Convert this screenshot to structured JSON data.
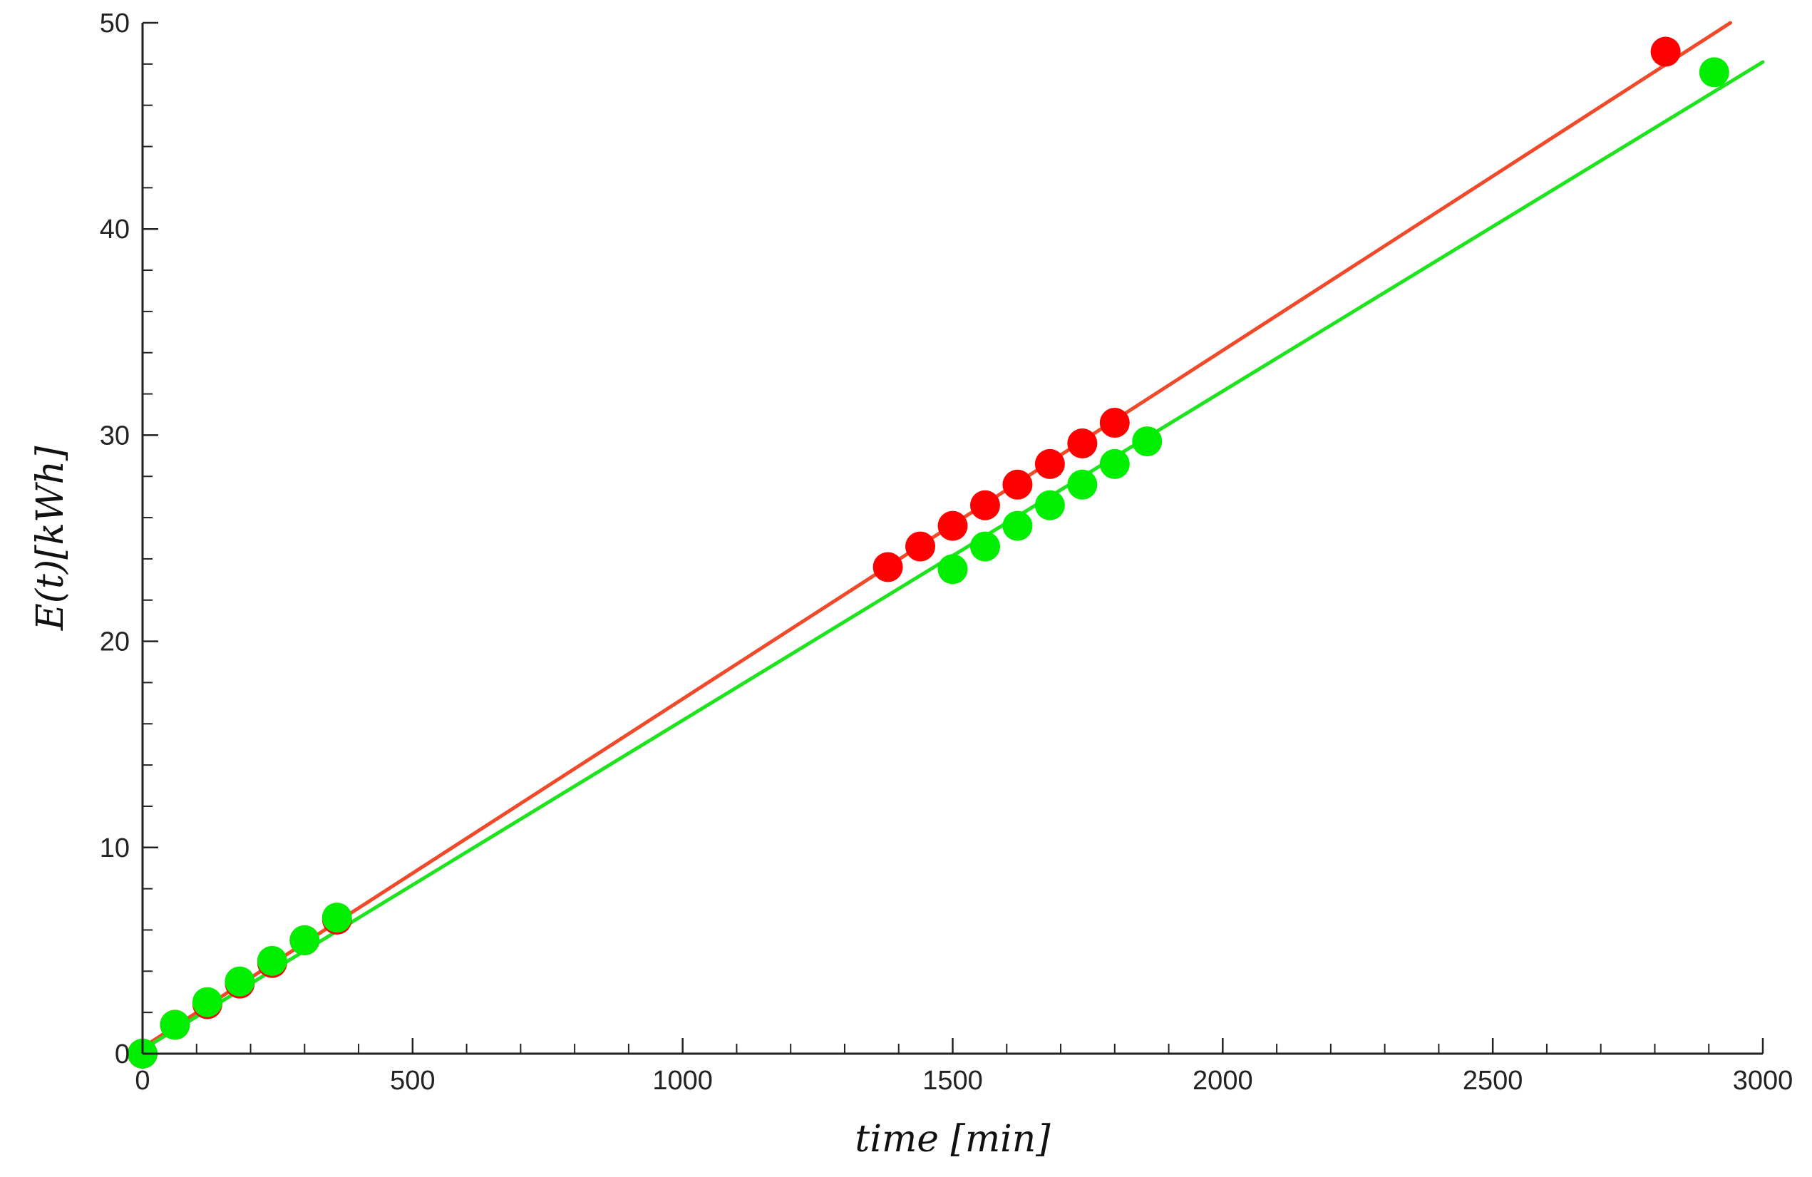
{
  "chart_data": {
    "type": "scatter",
    "title": "",
    "xlabel": "time [min]",
    "ylabel": "E(t)[kWh]",
    "xlim": [
      0,
      3000
    ],
    "ylim": [
      0,
      50
    ],
    "xticks": [
      0,
      500,
      1000,
      1500,
      2000,
      2500,
      3000
    ],
    "yticks": [
      0,
      10,
      20,
      30,
      40,
      50
    ],
    "grid": false,
    "legend": "none",
    "series": [
      {
        "color": "#ff0000",
        "line_color": "#f04a2a",
        "points": [
          {
            "x": 0,
            "y": 0.0
          },
          {
            "x": 60,
            "y": 1.4
          },
          {
            "x": 120,
            "y": 2.4
          },
          {
            "x": 180,
            "y": 3.4
          },
          {
            "x": 240,
            "y": 4.4
          },
          {
            "x": 300,
            "y": 5.5
          },
          {
            "x": 360,
            "y": 6.5
          },
          {
            "x": 1380,
            "y": 23.6
          },
          {
            "x": 1440,
            "y": 24.6
          },
          {
            "x": 1500,
            "y": 25.6
          },
          {
            "x": 1560,
            "y": 26.6
          },
          {
            "x": 1620,
            "y": 27.6
          },
          {
            "x": 1680,
            "y": 28.6
          },
          {
            "x": 1740,
            "y": 29.6
          },
          {
            "x": 1800,
            "y": 30.6
          },
          {
            "x": 2820,
            "y": 48.6
          }
        ],
        "fit_line": [
          [
            0,
            0.3
          ],
          [
            2940,
            50.0
          ]
        ]
      },
      {
        "color": "#00ee00",
        "line_color": "#1ee41e",
        "points": [
          {
            "x": 0,
            "y": 0.0
          },
          {
            "x": 60,
            "y": 1.4
          },
          {
            "x": 120,
            "y": 2.5
          },
          {
            "x": 180,
            "y": 3.5
          },
          {
            "x": 240,
            "y": 4.5
          },
          {
            "x": 300,
            "y": 5.5
          },
          {
            "x": 360,
            "y": 6.6
          },
          {
            "x": 1500,
            "y": 23.5
          },
          {
            "x": 1560,
            "y": 24.6
          },
          {
            "x": 1620,
            "y": 25.6
          },
          {
            "x": 1680,
            "y": 26.6
          },
          {
            "x": 1740,
            "y": 27.6
          },
          {
            "x": 1800,
            "y": 28.6
          },
          {
            "x": 1860,
            "y": 29.7
          },
          {
            "x": 2910,
            "y": 47.6
          }
        ],
        "fit_line": [
          [
            0,
            0.2
          ],
          [
            3000,
            48.1
          ]
        ]
      }
    ]
  }
}
